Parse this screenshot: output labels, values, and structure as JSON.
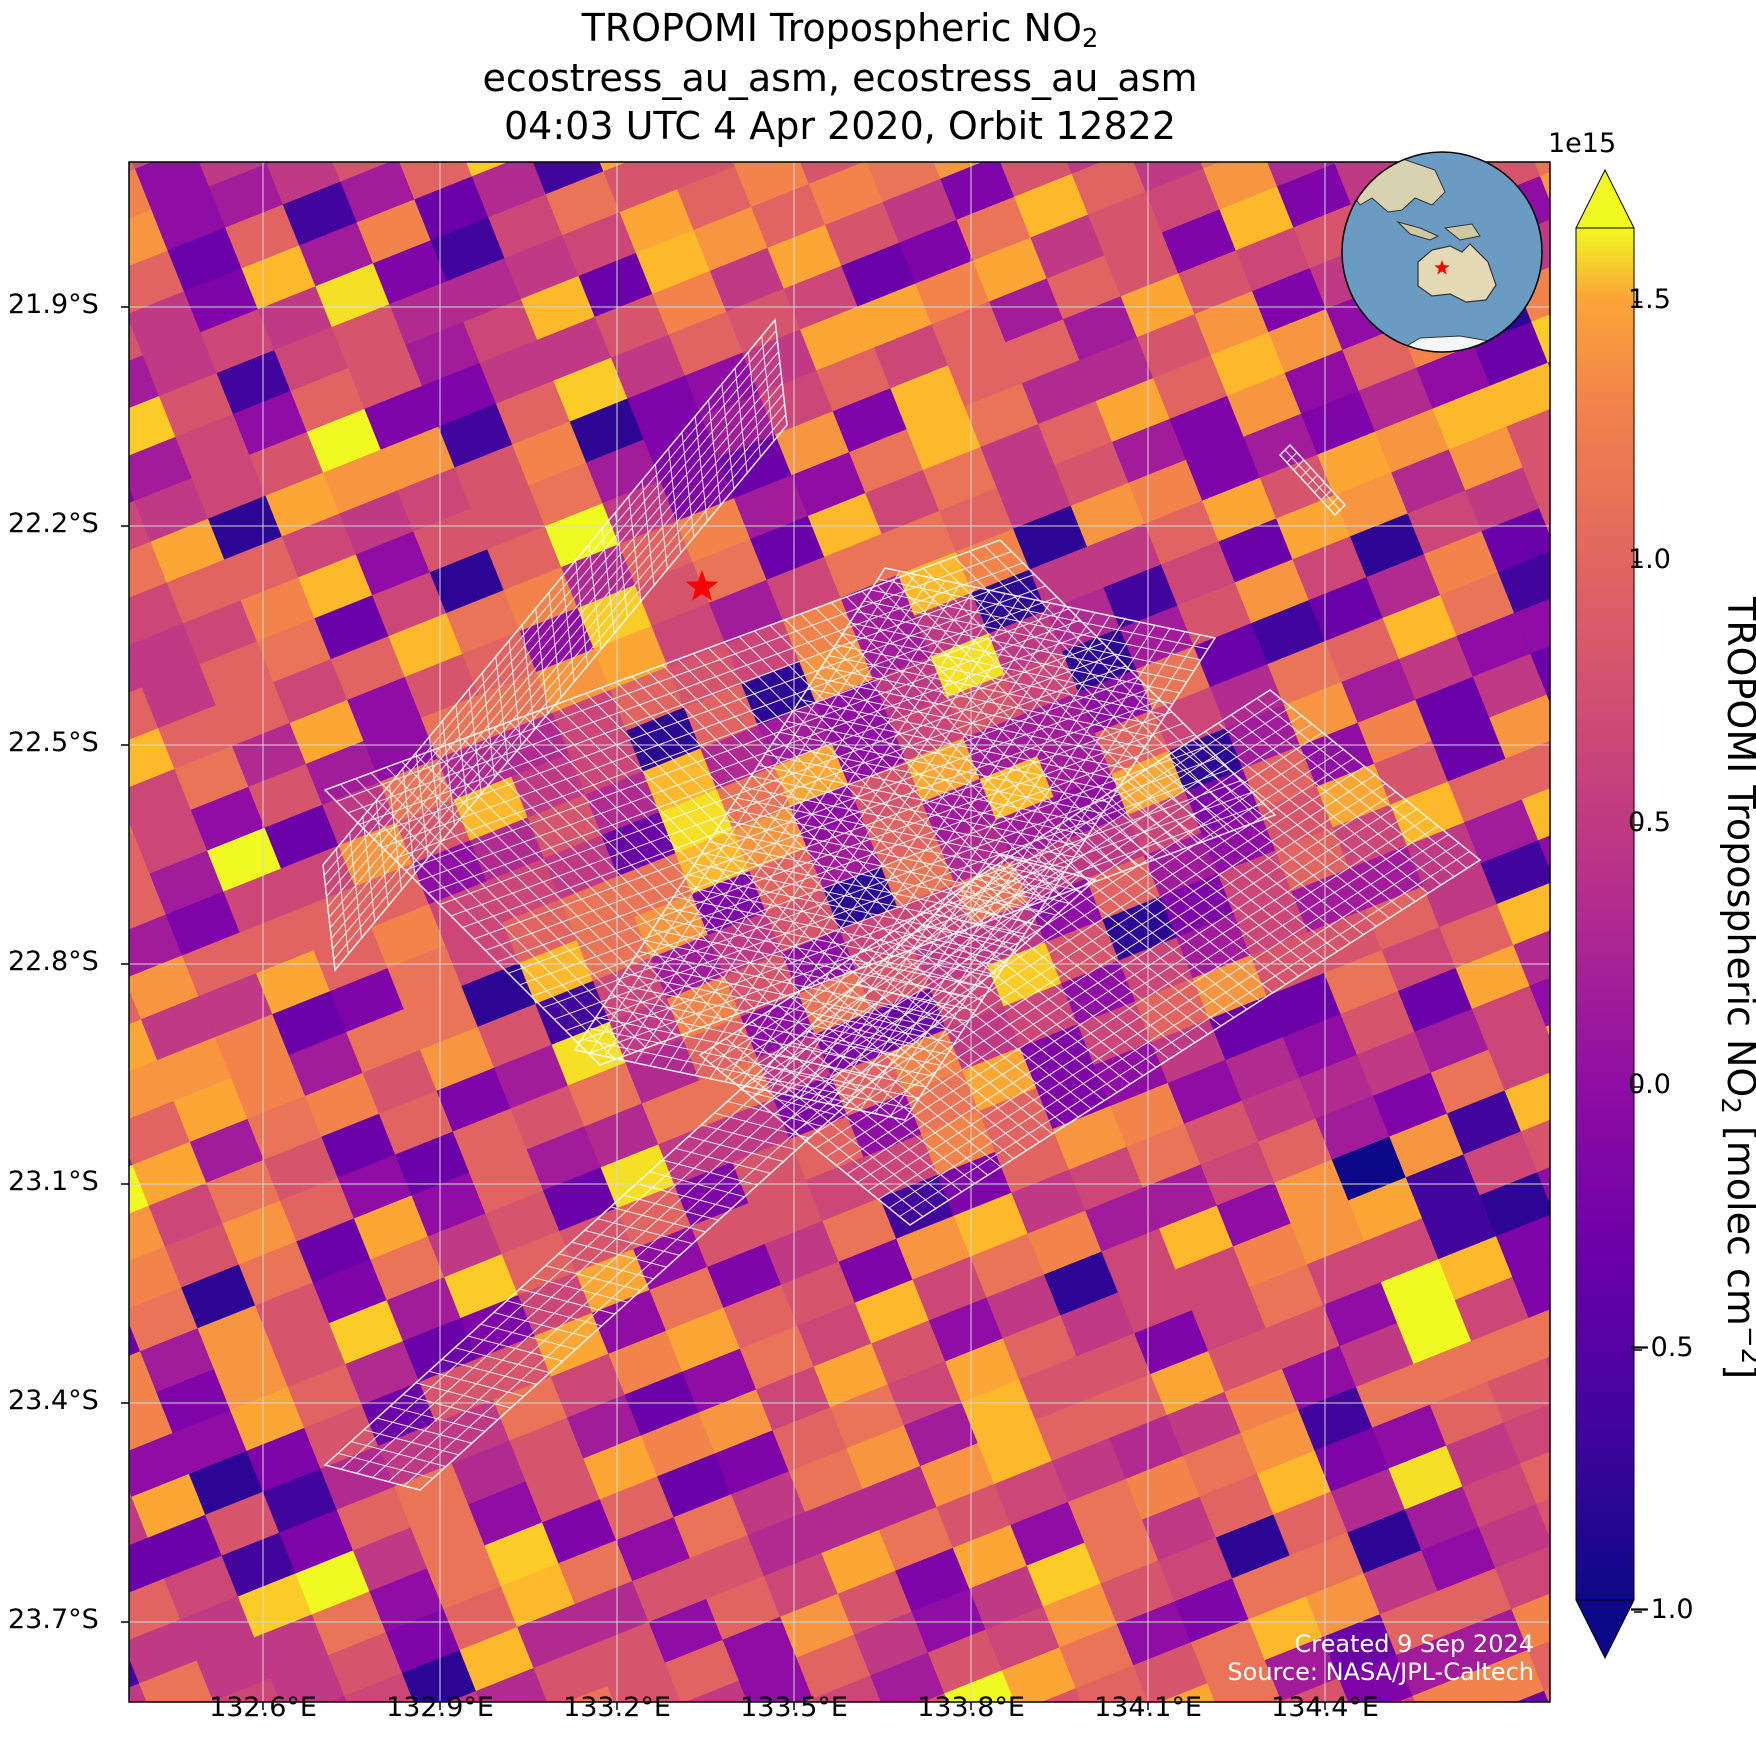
{
  "title": {
    "line1_prefix": "TROPOMI Tropospheric NO",
    "line1_sub": "2",
    "line2": "ecostress_au_asm, ecostress_au_asm",
    "line3": "04:03 UTC 4 Apr 2020, Orbit 12822"
  },
  "axes": {
    "lat_labels": [
      "21.9°S",
      "22.2°S",
      "22.5°S",
      "22.8°S",
      "23.1°S",
      "23.4°S",
      "23.7°S"
    ],
    "lon_labels": [
      "132.6°E",
      "132.9°E",
      "133.2°E",
      "133.5°E",
      "133.8°E",
      "134.1°E",
      "134.4°E"
    ]
  },
  "colorbar": {
    "colormap": "plasma",
    "exponent": "1e15",
    "ticks": [
      "1.5",
      "1.0",
      "0.5",
      "0.0",
      "−0.5",
      "−1.0"
    ],
    "label_prefix": "TROPOMI Tropospheric NO",
    "label_sub": "2",
    "label_mid": " [molec cm",
    "label_sup": "−2",
    "label_suffix": "]",
    "extend": "both"
  },
  "credits": {
    "created": "Created 9 Sep 2024",
    "source": "Source: NASA/JPL-Caltech"
  },
  "marker": {
    "shape": "star",
    "color": "#ff0000"
  },
  "inset_globe": {
    "ocean_color": "#6a9bc3",
    "land_color": "#e0d7b4",
    "marker_color": "#ff0000"
  },
  "colors": {
    "grid": "#d8d8d8",
    "overlay_lines": "#ffffff"
  }
}
